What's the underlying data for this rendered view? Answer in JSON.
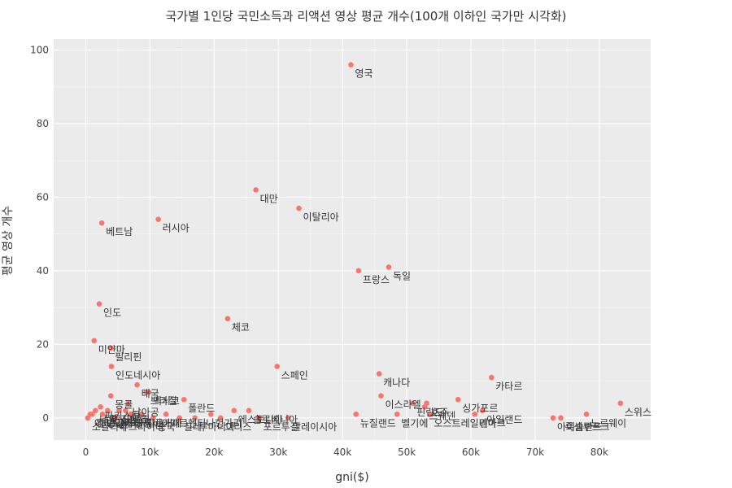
{
  "chart_data": {
    "type": "scatter",
    "title": "국가별 1인당 국민소득과 리액션 영상 평균 개수(100개 이하인 국가만 시각화)",
    "xlabel": "gni($)",
    "ylabel": "평균 영상 개수",
    "xlim": [
      -5000,
      88000
    ],
    "ylim": [
      -6,
      103
    ],
    "xticks": [
      0,
      10000,
      20000,
      30000,
      40000,
      50000,
      60000,
      70000,
      80000
    ],
    "xtick_labels": [
      "0",
      "10k",
      "20k",
      "30k",
      "40k",
      "50k",
      "60k",
      "70k",
      "80k"
    ],
    "yticks": [
      0,
      20,
      40,
      60,
      80,
      100
    ],
    "ytick_labels": [
      "0",
      "20",
      "40",
      "60",
      "80",
      "100"
    ],
    "grid": true,
    "point_color": "#f8766d",
    "points": [
      {
        "x": 41300,
        "y": 96,
        "label": "영국"
      },
      {
        "x": 26500,
        "y": 62,
        "label": "대만"
      },
      {
        "x": 33200,
        "y": 57,
        "label": "이탈리아"
      },
      {
        "x": 2500,
        "y": 53,
        "label": "베트남"
      },
      {
        "x": 11300,
        "y": 54,
        "label": "러시아"
      },
      {
        "x": 42500,
        "y": 40,
        "label": "프랑스"
      },
      {
        "x": 47200,
        "y": 41,
        "label": "독일"
      },
      {
        "x": 2100,
        "y": 31,
        "label": "인도"
      },
      {
        "x": 22100,
        "y": 27,
        "label": "체코"
      },
      {
        "x": 1300,
        "y": 21,
        "label": "미얀마"
      },
      {
        "x": 3900,
        "y": 19,
        "label": "필리핀"
      },
      {
        "x": 4000,
        "y": 14,
        "label": "인도네시아"
      },
      {
        "x": 29800,
        "y": 14,
        "label": "스페인"
      },
      {
        "x": 45700,
        "y": 12,
        "label": "캐나다"
      },
      {
        "x": 63200,
        "y": 11,
        "label": "카타르"
      },
      {
        "x": 8000,
        "y": 9,
        "label": "태국"
      },
      {
        "x": 9400,
        "y": 7,
        "label": "브라질"
      },
      {
        "x": 9800,
        "y": 7,
        "label": "멕시코"
      },
      {
        "x": 3900,
        "y": 6,
        "label": "몽골"
      },
      {
        "x": 46000,
        "y": 6,
        "label": "이스라엘"
      },
      {
        "x": 15300,
        "y": 5,
        "label": "폴란드"
      },
      {
        "x": 58000,
        "y": 5,
        "label": "싱가포르"
      },
      {
        "x": 83300,
        "y": 4,
        "label": "스위스"
      },
      {
        "x": 53100,
        "y": 4,
        "label": "호주"
      },
      {
        "x": 6600,
        "y": 4,
        "label": "남아공"
      },
      {
        "x": 50900,
        "y": 4,
        "label": "핀란드"
      },
      {
        "x": 52800,
        "y": 3,
        "label": "스웨덴"
      },
      {
        "x": 61800,
        "y": 2,
        "label": "아일랜드"
      },
      {
        "x": 42100,
        "y": 1,
        "label": "뉴질랜드"
      },
      {
        "x": 48500,
        "y": 1,
        "label": "벨기에"
      },
      {
        "x": 53600,
        "y": 1,
        "label": "오스트레일리아"
      },
      {
        "x": 60600,
        "y": 1,
        "label": "덴마크"
      },
      {
        "x": 78000,
        "y": 1,
        "label": "노르웨이"
      },
      {
        "x": 72800,
        "y": 0,
        "label": "아이슬란드"
      },
      {
        "x": 74000,
        "y": 0,
        "label": "룩셈부르크"
      },
      {
        "x": 19500,
        "y": 1,
        "label": "헝가리"
      },
      {
        "x": 23100,
        "y": 2,
        "label": "에스토니아"
      },
      {
        "x": 25400,
        "y": 2,
        "label": "슬로베니아"
      },
      {
        "x": 31500,
        "y": 0,
        "label": "말레이시아"
      },
      {
        "x": 2300,
        "y": 3,
        "label": "파키스탄"
      },
      {
        "x": 3400,
        "y": 2,
        "label": "이집트"
      },
      {
        "x": 5200,
        "y": 2,
        "label": "모로코"
      },
      {
        "x": 700,
        "y": 1,
        "label": "에티오피아"
      },
      {
        "x": 1500,
        "y": 2,
        "label": "네팔"
      },
      {
        "x": 6200,
        "y": 2,
        "label": "페루"
      },
      {
        "x": 8700,
        "y": 1,
        "label": "튀르키예"
      },
      {
        "x": 300,
        "y": 0,
        "label": "소말리아"
      },
      {
        "x": 1000,
        "y": 1,
        "label": "캄보디아"
      },
      {
        "x": 2600,
        "y": 1,
        "label": "방글라데시"
      },
      {
        "x": 4600,
        "y": 0,
        "label": "우크라이나"
      },
      {
        "x": 12500,
        "y": 1,
        "label": "아르헨티나"
      },
      {
        "x": 14600,
        "y": 0,
        "label": "칠레"
      },
      {
        "x": 17000,
        "y": 0,
        "label": "루마니아"
      },
      {
        "x": 21000,
        "y": 0,
        "label": "그리스"
      },
      {
        "x": 27000,
        "y": 0,
        "label": "포르투갈"
      },
      {
        "x": 7000,
        "y": 1,
        "label": "콜롬비아"
      },
      {
        "x": 10500,
        "y": 0,
        "label": "중국"
      }
    ]
  }
}
